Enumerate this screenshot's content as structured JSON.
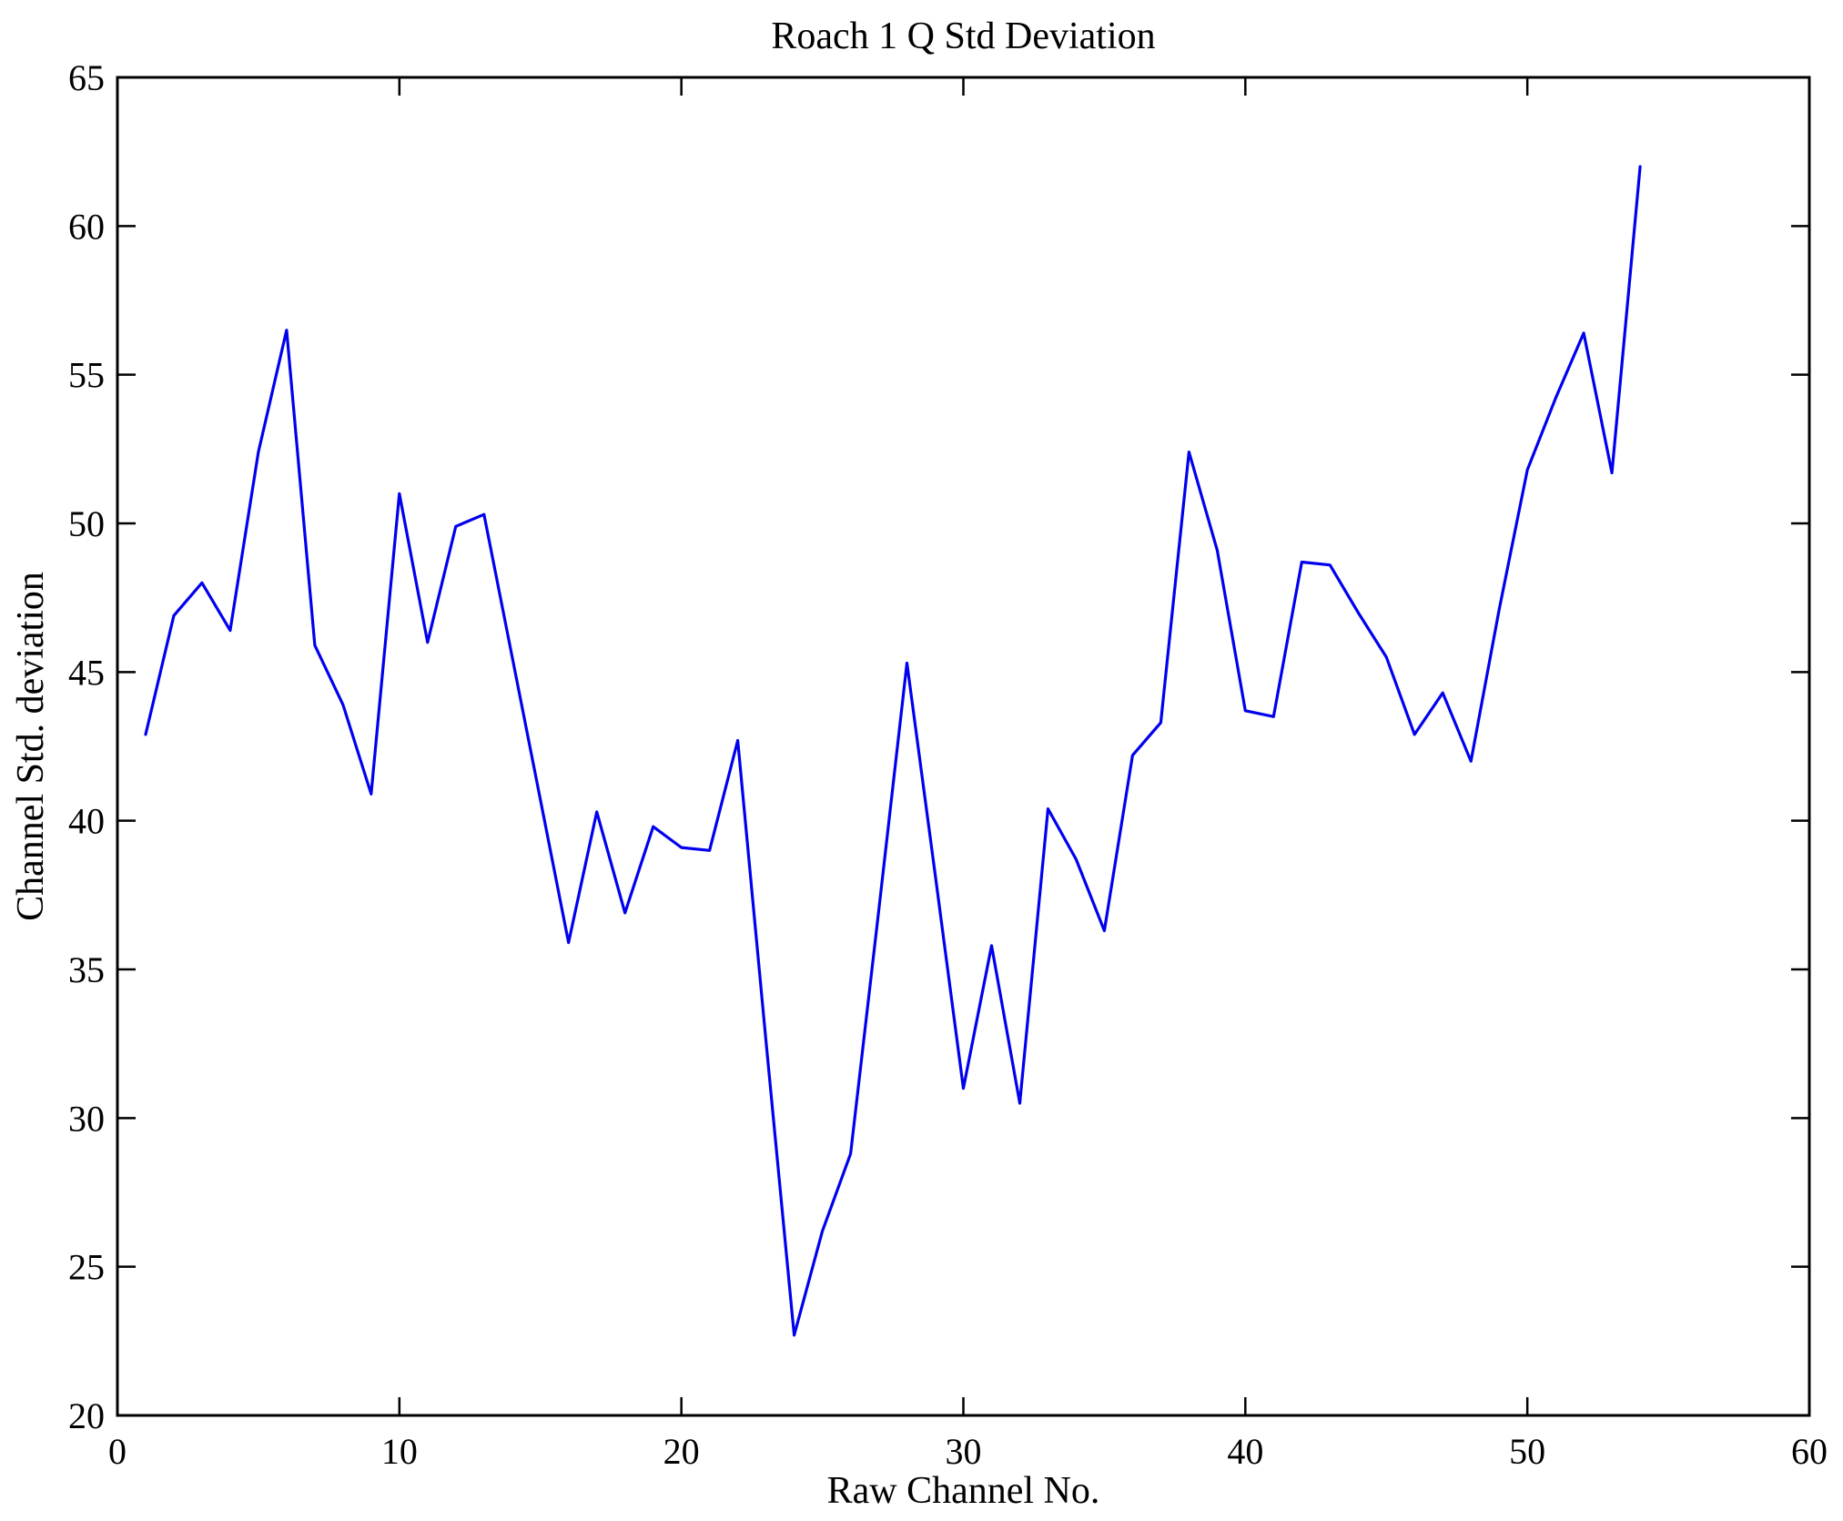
{
  "figure": {
    "background": "#ffffff",
    "frame_color": "#000000"
  },
  "chart_data": {
    "type": "line",
    "title": "Roach 1 Q Std Deviation",
    "xlabel": "Raw Channel No.",
    "ylabel": "Channel Std. deviation",
    "xlim": [
      0,
      60
    ],
    "ylim": [
      20,
      65
    ],
    "xticks": [
      0,
      10,
      20,
      30,
      40,
      50,
      60
    ],
    "yticks": [
      20,
      25,
      30,
      35,
      40,
      45,
      50,
      55,
      60,
      65
    ],
    "grid": false,
    "legend": null,
    "line_color": "#0000ee",
    "series_name": "Channel Std. deviation vs Raw Channel No.",
    "x": [
      1,
      2,
      3,
      4,
      5,
      6,
      7,
      8,
      9,
      10,
      11,
      12,
      13,
      14,
      15,
      16,
      17,
      18,
      19,
      20,
      21,
      22,
      23,
      24,
      25,
      26,
      27,
      28,
      29,
      30,
      31,
      32,
      33,
      34,
      35,
      36,
      37,
      38,
      39,
      40,
      41,
      42,
      43,
      44,
      45,
      46,
      47,
      48,
      49,
      50,
      51,
      52,
      53,
      54
    ],
    "values": [
      42.9,
      46.9,
      48.0,
      46.4,
      52.4,
      56.5,
      45.9,
      43.9,
      40.9,
      51.0,
      46.0,
      49.9,
      50.3,
      45.5,
      40.7,
      35.9,
      40.3,
      36.9,
      39.8,
      39.1,
      39.0,
      42.7,
      32.6,
      22.7,
      26.2,
      28.8,
      37.0,
      45.3,
      38.2,
      31.0,
      35.8,
      30.5,
      40.4,
      38.7,
      36.3,
      42.2,
      43.3,
      52.4,
      49.1,
      43.7,
      43.5,
      48.7,
      48.6,
      47.0,
      45.5,
      42.9,
      44.3,
      42.0,
      47.1,
      51.8,
      54.2,
      56.4,
      51.7,
      62.0
    ]
  }
}
